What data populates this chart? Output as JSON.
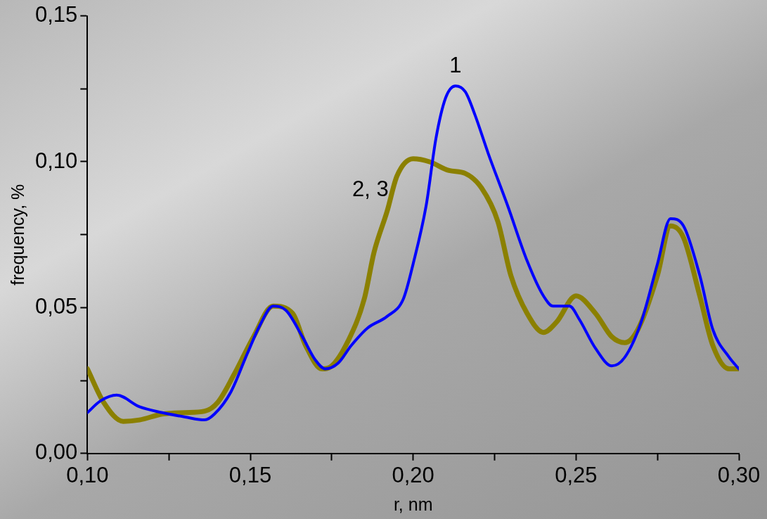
{
  "chart_data": {
    "type": "line",
    "xlabel": "r, nm",
    "ylabel": "frequency, %",
    "xlim": [
      0.1,
      0.3
    ],
    "xticks": [
      {
        "value": 0.1,
        "label": "0,10"
      },
      {
        "value": 0.125,
        "label": null
      },
      {
        "value": 0.15,
        "label": "0,15"
      },
      {
        "value": 0.175,
        "label": null
      },
      {
        "value": 0.2,
        "label": "0,20"
      },
      {
        "value": 0.225,
        "label": null
      },
      {
        "value": 0.25,
        "label": "0,25"
      },
      {
        "value": 0.275,
        "label": null
      },
      {
        "value": 0.3,
        "label": "0,30"
      }
    ],
    "ylim": [
      0,
      0.15
    ],
    "yticks": [
      {
        "value": 0,
        "label": "0,00"
      },
      {
        "value": 0.025,
        "label": null
      },
      {
        "value": 0.05,
        "label": "0,05"
      },
      {
        "value": 0.075,
        "label": null
      },
      {
        "value": 0.1,
        "label": "0,10"
      },
      {
        "value": 0.125,
        "label": null
      },
      {
        "value": 0.15,
        "label": "0,15"
      }
    ],
    "grid": false,
    "legend": false,
    "marker": "none",
    "line_style": "solid",
    "series": [
      {
        "name": "1",
        "color": "#0000ff",
        "x": [
          0.1,
          0.104,
          0.109,
          0.116,
          0.123,
          0.13,
          0.136,
          0.139,
          0.144,
          0.149,
          0.153,
          0.157,
          0.161,
          0.166,
          0.17,
          0.173,
          0.177,
          0.181,
          0.186,
          0.192,
          0.197,
          0.2,
          0.204,
          0.207,
          0.21,
          0.213,
          0.216,
          0.219,
          0.223,
          0.229,
          0.235,
          0.24,
          0.243,
          0.248,
          0.251,
          0.256,
          0.261,
          0.265,
          0.27,
          0.275,
          0.279,
          0.283,
          0.288,
          0.292,
          0.297,
          0.3
        ],
        "values": [
          0.014,
          0.018,
          0.02,
          0.016,
          0.014,
          0.0125,
          0.0115,
          0.0135,
          0.021,
          0.034,
          0.044,
          0.0505,
          0.049,
          0.04,
          0.032,
          0.029,
          0.031,
          0.037,
          0.043,
          0.047,
          0.053,
          0.065,
          0.085,
          0.108,
          0.122,
          0.126,
          0.124,
          0.116,
          0.103,
          0.085,
          0.066,
          0.054,
          0.0505,
          0.0505,
          0.046,
          0.036,
          0.03,
          0.033,
          0.045,
          0.065,
          0.0805,
          0.078,
          0.061,
          0.0425,
          0.033,
          0.029
        ]
      },
      {
        "name": "2, 3",
        "color": "#8b8000",
        "x": [
          0.1,
          0.105,
          0.111,
          0.116,
          0.123,
          0.13,
          0.136,
          0.14,
          0.145,
          0.151,
          0.157,
          0.163,
          0.167,
          0.172,
          0.175,
          0.18,
          0.185,
          0.188,
          0.192,
          0.195,
          0.2,
          0.205,
          0.211,
          0.216,
          0.221,
          0.226,
          0.23,
          0.235,
          0.24,
          0.244,
          0.25,
          0.256,
          0.261,
          0.265,
          0.269,
          0.275,
          0.279,
          0.283,
          0.288,
          0.292,
          0.297,
          0.3
        ],
        "values": [
          0.029,
          0.0175,
          0.011,
          0.0115,
          0.0135,
          0.014,
          0.0145,
          0.0175,
          0.027,
          0.04,
          0.0505,
          0.048,
          0.037,
          0.029,
          0.03,
          0.0385,
          0.053,
          0.069,
          0.083,
          0.095,
          0.101,
          0.1,
          0.097,
          0.096,
          0.091,
          0.0795,
          0.061,
          0.048,
          0.0415,
          0.045,
          0.054,
          0.048,
          0.04,
          0.038,
          0.0425,
          0.061,
          0.078,
          0.074,
          0.054,
          0.037,
          0.029,
          0.029
        ]
      }
    ]
  }
}
